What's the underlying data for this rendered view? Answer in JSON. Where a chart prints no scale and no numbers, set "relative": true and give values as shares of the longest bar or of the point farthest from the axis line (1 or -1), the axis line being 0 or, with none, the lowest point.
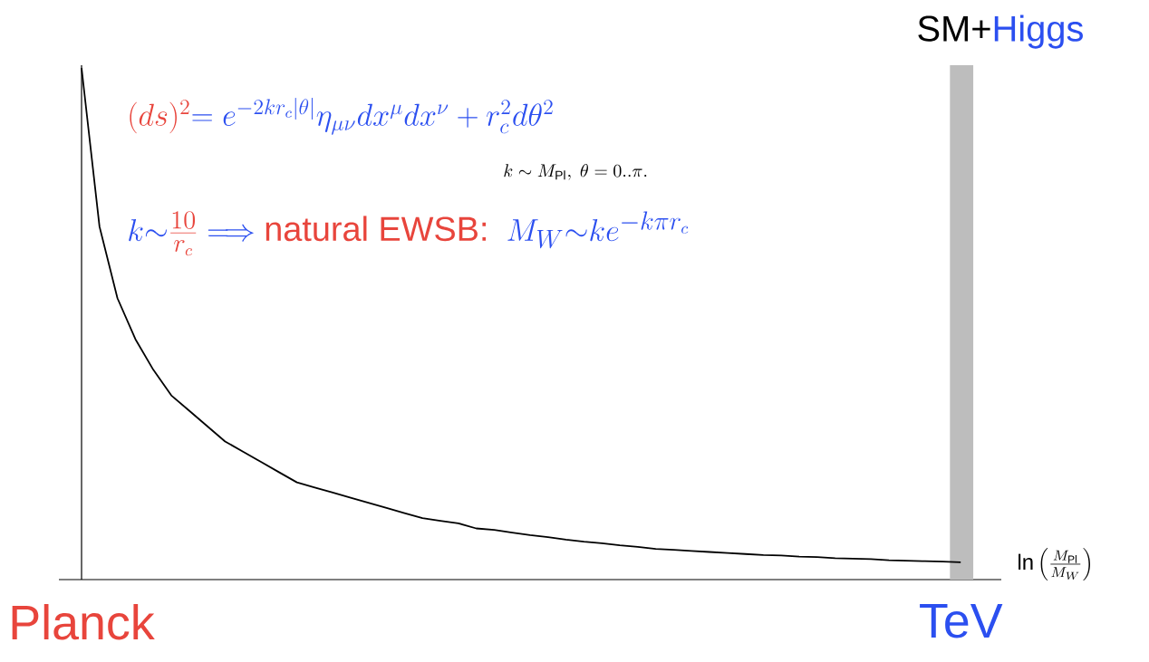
{
  "chart_data": {
    "type": "line",
    "relative": true,
    "marker": "none",
    "xlabel": "\\ln\\left(\\frac{M_{\\rm Pl}}{M_W}\\right)",
    "categories": [
      "Planck",
      null,
      null,
      null,
      null,
      null,
      null,
      null,
      null,
      null,
      null,
      null,
      null,
      null,
      null,
      null,
      null,
      null,
      null,
      null,
      null,
      null,
      null,
      null,
      null,
      null,
      null,
      null,
      null,
      null,
      null,
      null,
      null,
      null,
      null,
      null,
      null,
      null,
      null,
      null,
      null,
      null,
      null,
      null,
      null,
      null,
      null,
      null,
      null,
      "TeV"
    ],
    "series": [
      {
        "color": "#000000",
        "values": [
          1.0,
          0.69,
          0.55,
          0.47,
          0.41,
          0.36,
          0.33,
          0.3,
          0.27,
          0.25,
          0.23,
          0.21,
          0.19,
          0.18,
          0.17,
          0.16,
          0.15,
          0.14,
          0.13,
          0.12,
          0.115,
          0.11,
          0.1,
          0.097,
          0.092,
          0.087,
          0.083,
          0.078,
          0.074,
          0.071,
          0.067,
          0.064,
          0.06,
          0.058,
          0.056,
          0.054,
          0.052,
          0.05,
          0.048,
          0.047,
          0.045,
          0.044,
          0.042,
          0.041,
          0.04,
          0.038,
          0.037,
          0.036,
          0.035,
          0.034
        ]
      }
    ],
    "annotations": [
      "\\mbox{SM+\\textcolor[HTML]{2B4FF0}{Higgs}}",
      "\\textcolor[HTML]{E8453C}{(ds)^2} \\textcolor[HTML]{2B4FF0}{= e^{-2kr_c|\\theta|}\\eta_{\\mu\\nu}dx^\\mu dx^\\nu + r_c^2 d\\theta^2}",
      "k\\sim M_{\\rm Pl},\\ \\theta=0..\\pi.",
      "\\textcolor[HTML]{2B4FF0}{k{\\sim}}\\textcolor[HTML]{E8453C}{\\frac{10}{r_c}}\\;\\textcolor[HTML]{2B4FF0}{\\Longrightarrow}\\;\\textcolor[HTML]{E8453C}{\\mbox{natural EWSB:}}\\;\\;\\textcolor[HTML]{2B4FF0}{M_W{\\sim}ke^{-k\\pi r_c}}"
    ]
  }
}
